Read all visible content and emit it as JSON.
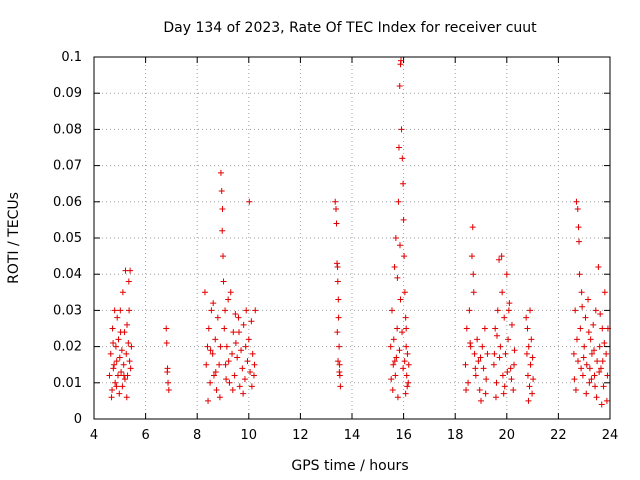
{
  "chart_data": {
    "type": "scatter",
    "title": "Day 134 of 2023, Rate Of TEC Index for receiver cuut",
    "xlabel": "GPS time / hours",
    "ylabel": "ROTI / TECUs",
    "xlim": [
      4,
      24
    ],
    "ylim": [
      0,
      0.1
    ],
    "x_ticks": [
      "4",
      "6",
      "8",
      "10",
      "12",
      "14",
      "16",
      "18",
      "20",
      "22",
      "24"
    ],
    "y_ticks": [
      "0",
      "0.01",
      "0.02",
      "0.03",
      "0.04",
      "0.05",
      "0.06",
      "0.07",
      "0.08",
      "0.09",
      "0.1"
    ],
    "grid": true,
    "marker": "+",
    "color": "#e00000",
    "series": [
      {
        "points": [
          [
            4.6,
            0.012
          ],
          [
            4.65,
            0.018
          ],
          [
            4.7,
            0.008
          ],
          [
            4.72,
            0.025
          ],
          [
            4.75,
            0.014
          ],
          [
            4.8,
            0.03
          ],
          [
            4.82,
            0.01
          ],
          [
            4.85,
            0.02
          ],
          [
            4.88,
            0.016
          ],
          [
            4.9,
            0.028
          ],
          [
            4.93,
            0.012
          ],
          [
            4.95,
            0.022
          ],
          [
            4.98,
            0.007
          ],
          [
            5.0,
            0.017
          ],
          [
            5.02,
            0.03
          ],
          [
            5.05,
            0.013
          ],
          [
            5.08,
            0.019
          ],
          [
            5.1,
            0.009
          ],
          [
            5.12,
            0.035
          ],
          [
            5.15,
            0.015
          ],
          [
            5.18,
            0.024
          ],
          [
            5.2,
            0.011
          ],
          [
            5.22,
            0.041
          ],
          [
            5.25,
            0.018
          ],
          [
            5.28,
            0.026
          ],
          [
            5.3,
            0.012
          ],
          [
            5.33,
            0.021
          ],
          [
            5.35,
            0.038
          ],
          [
            5.38,
            0.016
          ],
          [
            5.4,
            0.041
          ],
          [
            5.42,
            0.014
          ],
          [
            5.45,
            0.02
          ],
          [
            4.68,
            0.006
          ],
          [
            4.78,
            0.015
          ],
          [
            4.87,
            0.009
          ],
          [
            5.03,
            0.024
          ],
          [
            5.27,
            0.006
          ],
          [
            5.36,
            0.03
          ],
          [
            4.74,
            0.021
          ],
          [
            5.16,
            0.012
          ],
          [
            6.8,
            0.025
          ],
          [
            6.82,
            0.021
          ],
          [
            6.85,
            0.014
          ],
          [
            6.87,
            0.01
          ],
          [
            6.9,
            0.008
          ],
          [
            6.84,
            0.013
          ],
          [
            8.3,
            0.035
          ],
          [
            8.35,
            0.015
          ],
          [
            8.4,
            0.02
          ],
          [
            8.45,
            0.025
          ],
          [
            8.5,
            0.01
          ],
          [
            8.55,
            0.03
          ],
          [
            8.6,
            0.018
          ],
          [
            8.65,
            0.012
          ],
          [
            8.7,
            0.022
          ],
          [
            8.75,
            0.008
          ],
          [
            8.8,
            0.028
          ],
          [
            8.85,
            0.015
          ],
          [
            8.9,
            0.02
          ],
          [
            8.92,
            0.068
          ],
          [
            8.95,
            0.063
          ],
          [
            8.97,
            0.052
          ],
          [
            9.0,
            0.045
          ],
          [
            9.02,
            0.038
          ],
          [
            9.05,
            0.025
          ],
          [
            9.08,
            0.03
          ],
          [
            9.1,
            0.015
          ],
          [
            9.15,
            0.02
          ],
          [
            9.2,
            0.033
          ],
          [
            9.25,
            0.01
          ],
          [
            9.3,
            0.035
          ],
          [
            9.35,
            0.018
          ],
          [
            9.4,
            0.024
          ],
          [
            9.45,
            0.012
          ],
          [
            9.5,
            0.021
          ],
          [
            9.55,
            0.017
          ],
          [
            9.6,
            0.028
          ],
          [
            9.65,
            0.009
          ],
          [
            9.7,
            0.019
          ],
          [
            9.75,
            0.014
          ],
          [
            9.8,
            0.026
          ],
          [
            9.85,
            0.011
          ],
          [
            9.9,
            0.03
          ],
          [
            9.95,
            0.016
          ],
          [
            10.0,
            0.022
          ],
          [
            10.02,
            0.06
          ],
          [
            10.05,
            0.013
          ],
          [
            10.1,
            0.027
          ],
          [
            10.15,
            0.018
          ],
          [
            10.2,
            0.012
          ],
          [
            10.25,
            0.03
          ],
          [
            8.42,
            0.005
          ],
          [
            8.62,
            0.032
          ],
          [
            8.88,
            0.006
          ],
          [
            9.12,
            0.011
          ],
          [
            9.38,
            0.008
          ],
          [
            9.62,
            0.024
          ],
          [
            9.88,
            0.02
          ],
          [
            10.12,
            0.009
          ],
          [
            8.52,
            0.019
          ],
          [
            9.22,
            0.016
          ],
          [
            8.72,
            0.013
          ],
          [
            9.48,
            0.029
          ],
          [
            9.78,
            0.007
          ],
          [
            10.22,
            0.015
          ],
          [
            8.98,
            0.058
          ],
          [
            13.35,
            0.06
          ],
          [
            13.38,
            0.058
          ],
          [
            13.4,
            0.054
          ],
          [
            13.42,
            0.043
          ],
          [
            13.44,
            0.042
          ],
          [
            13.45,
            0.038
          ],
          [
            13.47,
            0.033
          ],
          [
            13.48,
            0.028
          ],
          [
            13.5,
            0.02
          ],
          [
            13.52,
            0.015
          ],
          [
            13.53,
            0.012
          ],
          [
            13.55,
            0.009
          ],
          [
            13.46,
            0.016
          ],
          [
            13.43,
            0.024
          ],
          [
            13.51,
            0.013
          ],
          [
            15.5,
            0.02
          ],
          [
            15.55,
            0.03
          ],
          [
            15.6,
            0.015
          ],
          [
            15.65,
            0.042
          ],
          [
            15.7,
            0.05
          ],
          [
            15.75,
            0.025
          ],
          [
            15.8,
            0.06
          ],
          [
            15.82,
            0.075
          ],
          [
            15.85,
            0.092
          ],
          [
            15.88,
            0.098
          ],
          [
            15.9,
            0.099
          ],
          [
            15.92,
            0.08
          ],
          [
            15.95,
            0.072
          ],
          [
            15.98,
            0.065
          ],
          [
            16.0,
            0.055
          ],
          [
            16.02,
            0.045
          ],
          [
            16.05,
            0.035
          ],
          [
            16.08,
            0.028
          ],
          [
            16.1,
            0.02
          ],
          [
            16.12,
            0.012
          ],
          [
            16.15,
            0.018
          ],
          [
            16.18,
            0.01
          ],
          [
            16.2,
            0.015
          ],
          [
            15.58,
            0.008
          ],
          [
            15.68,
            0.012
          ],
          [
            15.78,
            0.006
          ],
          [
            15.88,
            0.033
          ],
          [
            15.98,
            0.014
          ],
          [
            16.08,
            0.007
          ],
          [
            15.52,
            0.011
          ],
          [
            15.62,
            0.022
          ],
          [
            15.72,
            0.017
          ],
          [
            15.84,
            0.019
          ],
          [
            15.94,
            0.024
          ],
          [
            16.04,
            0.016
          ],
          [
            16.14,
            0.009
          ],
          [
            15.76,
            0.039
          ],
          [
            15.86,
            0.048
          ],
          [
            16.1,
            0.025
          ],
          [
            15.66,
            0.016
          ],
          [
            18.4,
            0.015
          ],
          [
            18.45,
            0.025
          ],
          [
            18.5,
            0.01
          ],
          [
            18.55,
            0.03
          ],
          [
            18.6,
            0.02
          ],
          [
            18.65,
            0.045
          ],
          [
            18.68,
            0.053
          ],
          [
            18.7,
            0.04
          ],
          [
            18.72,
            0.035
          ],
          [
            18.75,
            0.018
          ],
          [
            18.8,
            0.012
          ],
          [
            18.85,
            0.022
          ],
          [
            18.9,
            0.016
          ],
          [
            18.95,
            0.008
          ],
          [
            19.0,
            0.005
          ],
          [
            19.05,
            0.02
          ],
          [
            19.1,
            0.014
          ],
          [
            19.15,
            0.025
          ],
          [
            19.2,
            0.011
          ],
          [
            19.25,
            0.018
          ],
          [
            18.42,
            0.008
          ],
          [
            18.58,
            0.021
          ],
          [
            18.78,
            0.014
          ],
          [
            18.98,
            0.017
          ],
          [
            19.18,
            0.007
          ],
          [
            19.5,
            0.015
          ],
          [
            19.55,
            0.025
          ],
          [
            19.6,
            0.01
          ],
          [
            19.65,
            0.03
          ],
          [
            19.7,
            0.044
          ],
          [
            19.75,
            0.02
          ],
          [
            19.8,
            0.045
          ],
          [
            19.82,
            0.035
          ],
          [
            19.85,
            0.012
          ],
          [
            19.9,
            0.028
          ],
          [
            19.95,
            0.018
          ],
          [
            20.0,
            0.04
          ],
          [
            20.05,
            0.022
          ],
          [
            20.1,
            0.032
          ],
          [
            20.15,
            0.014
          ],
          [
            20.2,
            0.026
          ],
          [
            20.25,
            0.008
          ],
          [
            20.3,
            0.019
          ],
          [
            19.58,
            0.006
          ],
          [
            19.72,
            0.017
          ],
          [
            19.88,
            0.007
          ],
          [
            20.02,
            0.013
          ],
          [
            20.18,
            0.011
          ],
          [
            19.62,
            0.023
          ],
          [
            19.92,
            0.009
          ],
          [
            20.08,
            0.03
          ],
          [
            19.52,
            0.018
          ],
          [
            20.28,
            0.015
          ],
          [
            20.75,
            0.028
          ],
          [
            20.78,
            0.018
          ],
          [
            20.8,
            0.025
          ],
          [
            20.82,
            0.012
          ],
          [
            20.85,
            0.02
          ],
          [
            20.88,
            0.009
          ],
          [
            20.9,
            0.03
          ],
          [
            20.92,
            0.015
          ],
          [
            20.95,
            0.022
          ],
          [
            20.98,
            0.007
          ],
          [
            21.0,
            0.017
          ],
          [
            21.02,
            0.011
          ],
          [
            20.84,
            0.005
          ],
          [
            22.6,
            0.018
          ],
          [
            22.65,
            0.03
          ],
          [
            22.7,
            0.06
          ],
          [
            22.75,
            0.058
          ],
          [
            22.78,
            0.053
          ],
          [
            22.8,
            0.049
          ],
          [
            22.82,
            0.04
          ],
          [
            22.85,
            0.025
          ],
          [
            22.9,
            0.035
          ],
          [
            22.95,
            0.012
          ],
          [
            23.0,
            0.02
          ],
          [
            23.05,
            0.028
          ],
          [
            23.1,
            0.015
          ],
          [
            23.15,
            0.033
          ],
          [
            23.2,
            0.01
          ],
          [
            23.25,
            0.022
          ],
          [
            23.3,
            0.018
          ],
          [
            23.35,
            0.026
          ],
          [
            23.4,
            0.012
          ],
          [
            23.45,
            0.03
          ],
          [
            23.5,
            0.016
          ],
          [
            23.55,
            0.042
          ],
          [
            23.6,
            0.02
          ],
          [
            23.65,
            0.014
          ],
          [
            23.7,
            0.025
          ],
          [
            23.75,
            0.009
          ],
          [
            23.8,
            0.035
          ],
          [
            23.85,
            0.018
          ],
          [
            23.9,
            0.012
          ],
          [
            22.68,
            0.008
          ],
          [
            22.88,
            0.014
          ],
          [
            23.08,
            0.007
          ],
          [
            23.28,
            0.011
          ],
          [
            23.48,
            0.006
          ],
          [
            23.68,
            0.004
          ],
          [
            23.88,
            0.005
          ],
          [
            22.72,
            0.022
          ],
          [
            22.98,
            0.017
          ],
          [
            23.18,
            0.024
          ],
          [
            23.38,
            0.019
          ],
          [
            23.58,
            0.013
          ],
          [
            23.78,
            0.021
          ],
          [
            22.62,
            0.011
          ],
          [
            23.62,
            0.029
          ],
          [
            23.92,
            0.025
          ],
          [
            22.92,
            0.031
          ],
          [
            23.22,
            0.014
          ],
          [
            23.42,
            0.009
          ],
          [
            23.72,
            0.016
          ],
          [
            22.76,
            0.016
          ]
        ]
      }
    ]
  }
}
